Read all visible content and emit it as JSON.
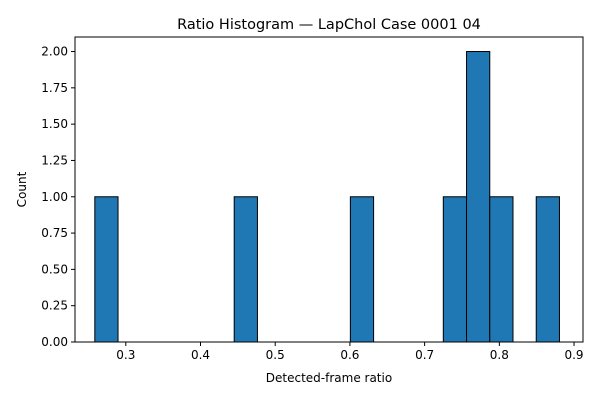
{
  "chart_data": {
    "type": "bar",
    "subtype": "histogram",
    "title": "Ratio Histogram — LapChol Case 0001 04",
    "xlabel": "Detected-frame ratio",
    "ylabel": "Count",
    "xlim": [
      0.232,
      0.912
    ],
    "ylim": [
      0,
      2.1
    ],
    "bin_width": 0.0311,
    "bins": [
      {
        "x0": 0.2585,
        "x1": 0.2896,
        "count": 1
      },
      {
        "x0": 0.4451,
        "x1": 0.4762,
        "count": 1
      },
      {
        "x0": 0.6006,
        "x1": 0.6317,
        "count": 1
      },
      {
        "x0": 0.725,
        "x1": 0.7561,
        "count": 1
      },
      {
        "x0": 0.7561,
        "x1": 0.7872,
        "count": 2
      },
      {
        "x0": 0.7872,
        "x1": 0.8183,
        "count": 1
      },
      {
        "x0": 0.8494,
        "x1": 0.8805,
        "count": 1
      }
    ],
    "xticks": [
      0.3,
      0.4,
      0.5,
      0.6,
      0.7,
      0.8,
      0.9
    ],
    "xtick_labels": [
      "0.3",
      "0.4",
      "0.5",
      "0.6",
      "0.7",
      "0.8",
      "0.9"
    ],
    "yticks": [
      0,
      0.25,
      0.5,
      0.75,
      1.0,
      1.25,
      1.5,
      1.75,
      2.0
    ],
    "ytick_labels": [
      "0.00",
      "0.25",
      "0.50",
      "0.75",
      "1.00",
      "1.25",
      "1.50",
      "1.75",
      "2.00"
    ],
    "grid": false,
    "legend": false,
    "bar_color": "#1f77b4",
    "edge_color": "#000000"
  }
}
